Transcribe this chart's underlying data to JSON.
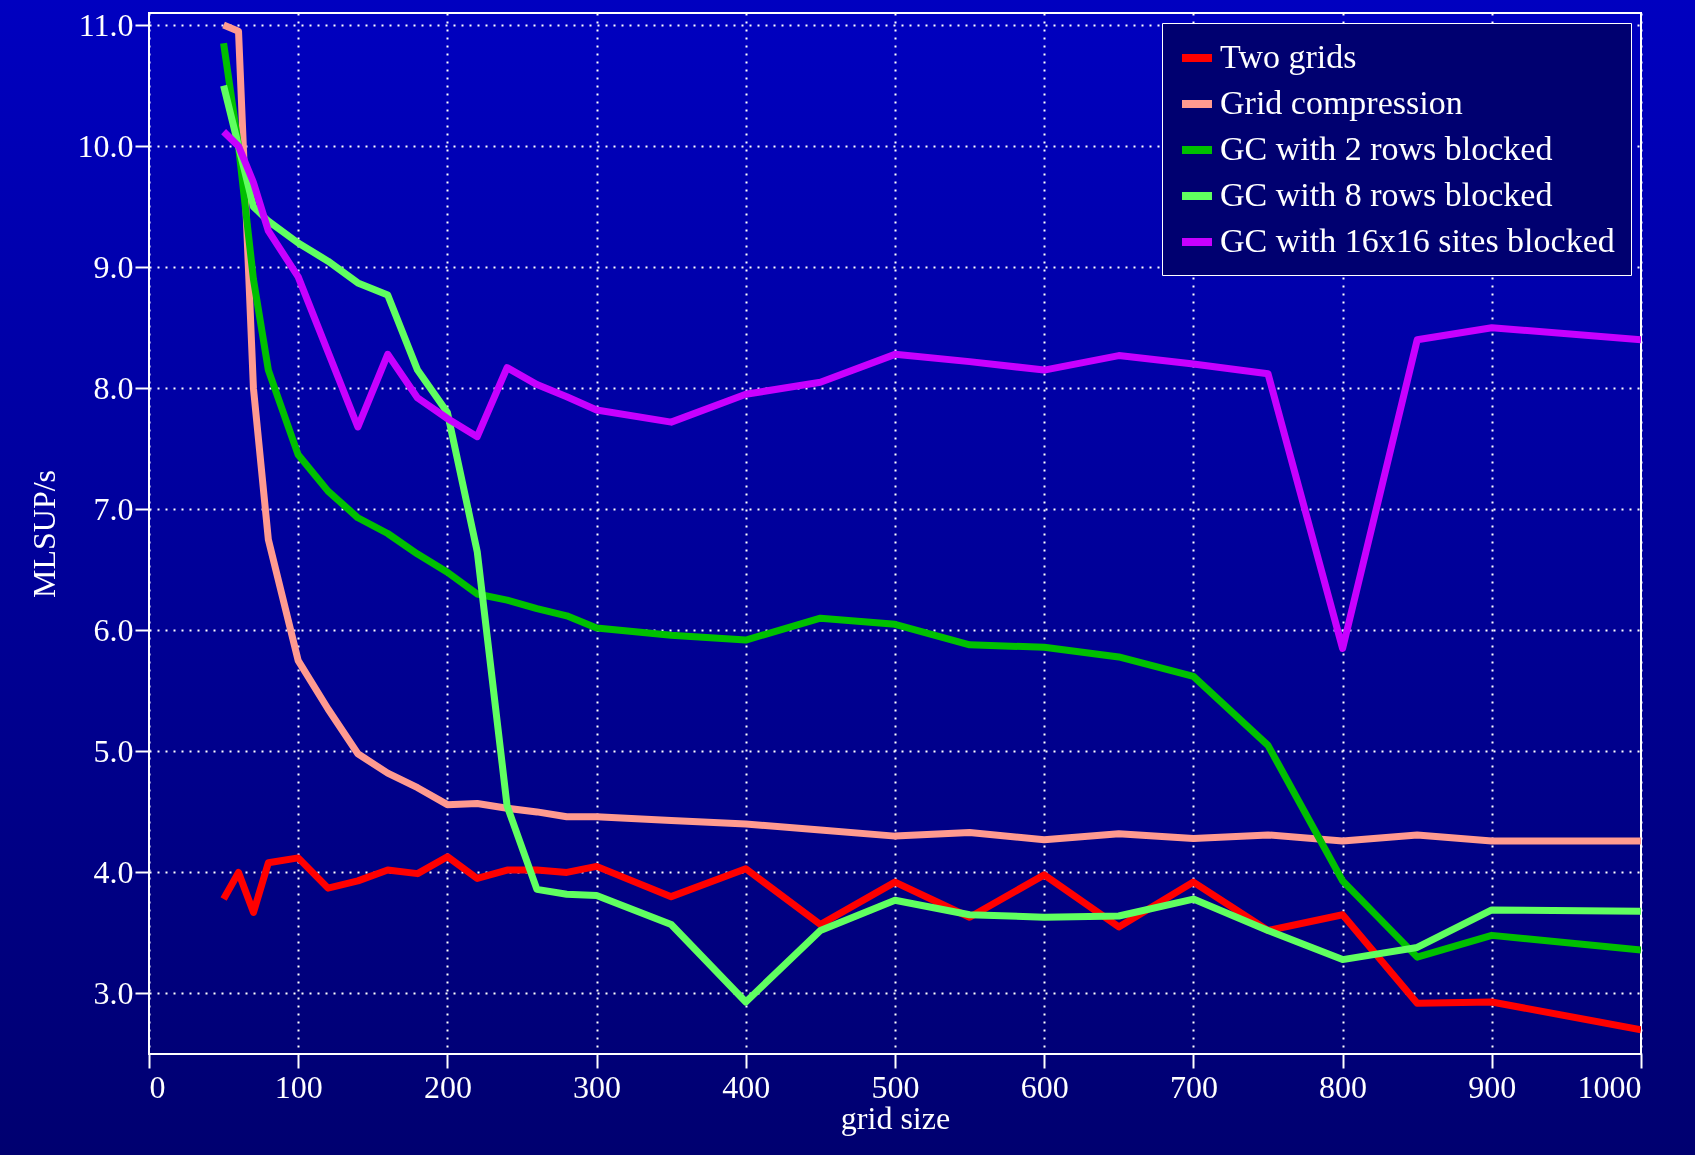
{
  "chart_data": {
    "type": "line",
    "xlabel": "grid size",
    "ylabel": "MLSUP/s",
    "x": [
      50,
      60,
      70,
      80,
      100,
      120,
      140,
      160,
      180,
      200,
      220,
      240,
      260,
      280,
      300,
      350,
      400,
      450,
      500,
      550,
      600,
      650,
      700,
      750,
      800,
      850,
      900,
      1000
    ],
    "series": [
      {
        "name": "Two grids",
        "color": "#ff0000",
        "values": [
          3.78,
          4.0,
          3.67,
          4.08,
          4.12,
          3.87,
          3.93,
          4.02,
          3.99,
          4.13,
          3.95,
          4.02,
          4.02,
          4.0,
          4.05,
          3.8,
          4.03,
          3.57,
          3.92,
          3.63,
          3.98,
          3.55,
          3.92,
          3.52,
          3.65,
          2.92,
          2.93,
          2.7
        ]
      },
      {
        "name": "Grid compression",
        "color": "#ff9a90",
        "values": [
          11.0,
          10.95,
          8.0,
          6.75,
          5.75,
          5.35,
          4.98,
          4.82,
          4.7,
          4.56,
          4.57,
          4.53,
          4.5,
          4.46,
          4.46,
          4.43,
          4.4,
          4.35,
          4.3,
          4.33,
          4.27,
          4.32,
          4.28,
          4.31,
          4.26,
          4.31,
          4.26,
          4.26
        ]
      },
      {
        "name": "GC with 2 rows blocked",
        "color": "#00c000",
        "values": [
          10.85,
          10.0,
          8.9,
          8.15,
          7.45,
          7.15,
          6.93,
          6.8,
          6.63,
          6.48,
          6.3,
          6.25,
          6.18,
          6.12,
          6.02,
          5.96,
          5.92,
          6.1,
          6.05,
          5.88,
          5.86,
          5.78,
          5.62,
          5.05,
          3.93,
          3.3,
          3.48,
          3.36
        ]
      },
      {
        "name": "GC with 8 rows blocked",
        "color": "#60ff60",
        "values": [
          10.5,
          10.0,
          9.5,
          9.38,
          9.2,
          9.05,
          8.87,
          8.77,
          8.15,
          7.8,
          6.65,
          4.55,
          3.86,
          3.82,
          3.81,
          3.57,
          2.93,
          3.52,
          3.77,
          3.65,
          3.63,
          3.64,
          3.78,
          3.52,
          3.28,
          3.38,
          3.69,
          3.68
        ]
      },
      {
        "name": "GC with 16x16 sites blocked",
        "color": "#c800ff",
        "values": [
          10.12,
          10.0,
          9.7,
          9.3,
          8.92,
          8.3,
          7.68,
          8.28,
          7.92,
          7.75,
          7.6,
          8.17,
          8.03,
          7.93,
          7.82,
          7.72,
          7.95,
          8.05,
          8.28,
          8.22,
          8.15,
          8.27,
          8.2,
          8.12,
          5.85,
          8.4,
          8.5,
          8.4
        ]
      }
    ],
    "xlim": [
      0,
      1000
    ],
    "xticks": [
      0,
      100,
      200,
      300,
      400,
      500,
      600,
      700,
      800,
      900,
      1000
    ],
    "ylim": [
      2.5,
      11.1
    ],
    "yticks": [
      {
        "value": 3,
        "label": "3.0"
      },
      {
        "value": 4,
        "label": "4.0"
      },
      {
        "value": 5,
        "label": "5.0"
      },
      {
        "value": 6,
        "label": "6.0"
      },
      {
        "value": 7,
        "label": "7.0"
      },
      {
        "value": 8,
        "label": "8.0"
      },
      {
        "value": 9,
        "label": "9.0"
      },
      {
        "value": 10,
        "label": "10.0"
      },
      {
        "value": 11,
        "label": "11.0"
      }
    ],
    "grid": true,
    "legend": "top right",
    "marker": "none",
    "line_style": "solid"
  }
}
